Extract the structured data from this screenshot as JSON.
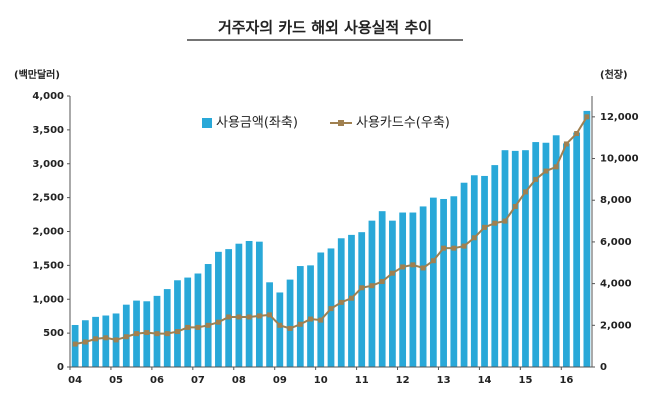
{
  "chart_data": {
    "type": "bar",
    "title": "거주자의 카드 해외 사용실적 추이",
    "y_label": "(백만달러)",
    "y2_label": "(천장)",
    "categories": [
      "04",
      null,
      null,
      null,
      "05",
      null,
      null,
      null,
      "06",
      null,
      null,
      null,
      "07",
      null,
      null,
      null,
      "08",
      null,
      null,
      null,
      "09",
      null,
      null,
      null,
      "10",
      null,
      null,
      null,
      "11",
      null,
      null,
      null,
      "12",
      null,
      null,
      null,
      "13",
      null,
      null,
      null,
      "14",
      null,
      null,
      null,
      "15",
      null,
      null,
      null,
      "16",
      null,
      null
    ],
    "series": [
      {
        "name": "사용금액(좌축)",
        "color": "#29a8d8",
        "values": [
          620,
          690,
          740,
          760,
          790,
          920,
          980,
          970,
          1050,
          1150,
          1280,
          1320,
          1380,
          1520,
          1700,
          1740,
          1820,
          1860,
          1850,
          1250,
          1100,
          1290,
          1490,
          1500,
          1690,
          1750,
          1900,
          1950,
          1990,
          2160,
          2300,
          2160,
          2280,
          2280,
          2370,
          2500,
          2480,
          2520,
          2720,
          2830,
          2820,
          2980,
          3200,
          3190,
          3200,
          3320,
          3310,
          3420,
          3300,
          3460,
          3780
        ]
      },
      {
        "name": "사용카드수(우축)",
        "color": "#a08050",
        "axis": "y2",
        "values": [
          1100,
          1200,
          1350,
          1400,
          1300,
          1450,
          1600,
          1650,
          1600,
          1600,
          1700,
          1900,
          1900,
          2000,
          2150,
          2400,
          2400,
          2400,
          2450,
          2500,
          2000,
          1850,
          2050,
          2300,
          2250,
          2800,
          3100,
          3300,
          3800,
          3900,
          4100,
          4500,
          4800,
          4900,
          4750,
          5100,
          5700,
          5700,
          5800,
          6200,
          6700,
          6900,
          7000,
          7700,
          8400,
          9000,
          9400,
          9600,
          10700,
          11200,
          12000
        ]
      }
    ],
    "ylim": [
      0,
      4000
    ],
    "yticks": [
      0,
      500,
      {
        "value": 1000,
        "label": "1,000"
      },
      {
        "value": 1500,
        "label": "1,500"
      },
      {
        "value": 2000,
        "label": "2,000"
      },
      {
        "value": 2500,
        "label": "2,500"
      },
      {
        "value": 3000,
        "label": "3,000"
      },
      {
        "value": 3500,
        "label": "3,500"
      },
      {
        "value": 4000,
        "label": "4,000"
      }
    ],
    "y2lim": [
      0,
      13000
    ],
    "y2ticks": [
      0,
      {
        "value": 2000,
        "label": "2,000"
      },
      {
        "value": 4000,
        "label": "4,000"
      },
      {
        "value": 6000,
        "label": "6,000"
      },
      {
        "value": 8000,
        "label": "8,000"
      },
      {
        "value": 10000,
        "label": "10,000"
      },
      {
        "value": 12000,
        "label": "12,000"
      }
    ]
  }
}
